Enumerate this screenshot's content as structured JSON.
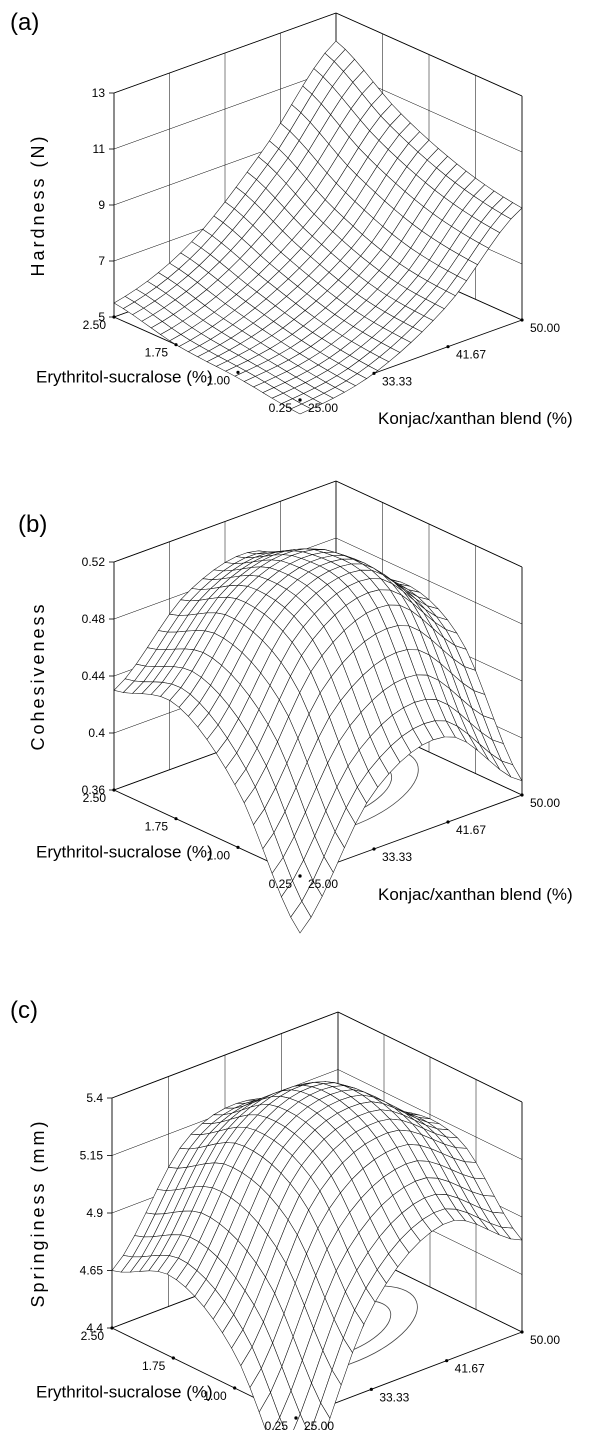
{
  "chart_data": [
    {
      "panel": "(a)",
      "type": "surface3d",
      "zlabel": "Hardness (N)",
      "xlabel": "Konjac/xanthan blend (%)",
      "ylabel": "Erythritol-sucralose (%)",
      "x_ticks": [
        "25.00",
        "33.33",
        "41.67",
        "50.00"
      ],
      "y_ticks": [
        "0.25",
        "1.00",
        "1.75",
        "2.50"
      ],
      "z_ticks": [
        "5",
        "7",
        "9",
        "11",
        "13"
      ],
      "xlim": [
        25,
        50
      ],
      "ylim": [
        0.25,
        2.5
      ],
      "zlim": [
        5,
        13
      ],
      "x": [
        25,
        33.33,
        41.67,
        50
      ],
      "y": [
        0.25,
        1.0,
        1.75,
        2.5
      ],
      "z": [
        [
          4.5,
          5.0,
          6.5,
          9.0
        ],
        [
          4.8,
          5.3,
          6.8,
          9.5
        ],
        [
          5.0,
          5.9,
          7.7,
          10.5
        ],
        [
          5.5,
          6.6,
          9.0,
          12.0
        ]
      ]
    },
    {
      "panel": "(b)",
      "type": "surface3d",
      "zlabel": "Cohesiveness",
      "xlabel": "Konjac/xanthan blend (%)",
      "ylabel": "Erythritol-sucralose (%)",
      "x_ticks": [
        "25.00",
        "33.33",
        "41.67",
        "50.00"
      ],
      "y_ticks": [
        "0.25",
        "1.00",
        "1.75",
        "2.50"
      ],
      "z_ticks": [
        "0.36",
        "0.4",
        "0.44",
        "0.48",
        "0.52"
      ],
      "xlim": [
        25,
        50
      ],
      "ylim": [
        0.25,
        2.5
      ],
      "zlim": [
        0.36,
        0.52
      ],
      "x": [
        25,
        33.33,
        41.67,
        50
      ],
      "y": [
        0.25,
        1.0,
        1.75,
        2.5
      ],
      "z": [
        [
          0.32,
          0.4,
          0.42,
          0.37
        ],
        [
          0.4,
          0.48,
          0.5,
          0.45
        ],
        [
          0.44,
          0.5,
          0.51,
          0.47
        ],
        [
          0.43,
          0.48,
          0.49,
          0.44
        ]
      ]
    },
    {
      "panel": "(c)",
      "type": "surface3d",
      "zlabel": "Springiness (mm)",
      "xlabel": "Konjac/xanthan blend (%)",
      "ylabel": "Erythritol-sucralose (%)",
      "x_ticks": [
        "25.00",
        "33.33",
        "41.67",
        "50.00"
      ],
      "y_ticks": [
        "0.25",
        "1.00",
        "1.75",
        "2.50"
      ],
      "z_ticks": [
        "4.4",
        "4.65",
        "4.9",
        "5.15",
        "5.4"
      ],
      "xlim": [
        25,
        50
      ],
      "ylim": [
        0.25,
        2.5
      ],
      "zlim": [
        4.4,
        5.4
      ],
      "x": [
        25,
        33.33,
        41.67,
        50
      ],
      "y": [
        0.25,
        1.0,
        1.75,
        2.5
      ],
      "z": [
        [
          4.05,
          4.75,
          5.0,
          4.8
        ],
        [
          4.55,
          5.15,
          5.3,
          5.1
        ],
        [
          4.75,
          5.25,
          5.35,
          5.1
        ],
        [
          4.65,
          5.1,
          5.15,
          4.9
        ]
      ]
    }
  ]
}
